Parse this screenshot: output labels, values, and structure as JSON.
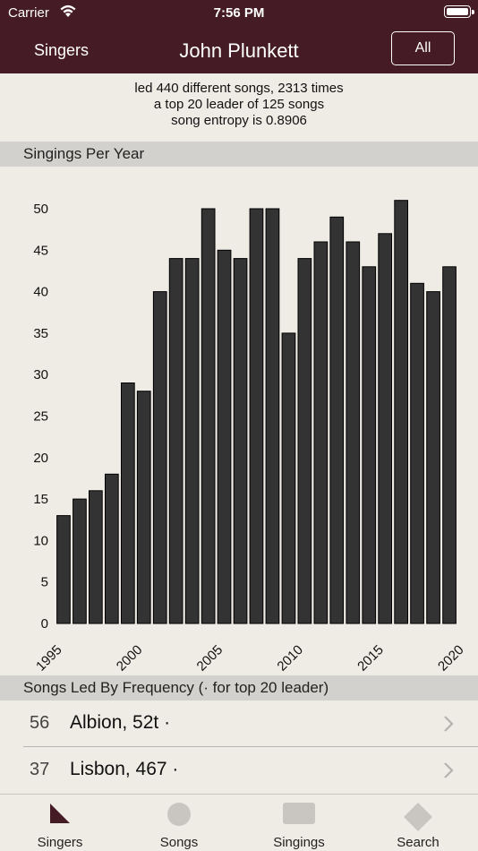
{
  "status_bar": {
    "carrier": "Carrier",
    "time": "7:56 PM"
  },
  "nav": {
    "back_label": "Singers",
    "title": "John Plunkett",
    "filter_label": "All"
  },
  "summary": {
    "line1": "led 440 different songs, 2313 times",
    "line2": "a top 20 leader of 125 songs",
    "line3": "song entropy is 0.8906"
  },
  "sections": {
    "per_year": "Singings Per Year",
    "by_frequency": "Songs Led By Frequency (· for top 20 leader)"
  },
  "chart_data": {
    "type": "bar",
    "title": "",
    "xlabel": "",
    "ylabel": "",
    "x": [
      1996,
      1997,
      1998,
      1999,
      2000,
      2001,
      2002,
      2003,
      2004,
      2005,
      2006,
      2007,
      2008,
      2009,
      2010,
      2011,
      2012,
      2013,
      2014,
      2015,
      2016,
      2017,
      2018,
      2019,
      2020
    ],
    "values": [
      13,
      15,
      16,
      18,
      29,
      28,
      40,
      44,
      44,
      50,
      45,
      44,
      50,
      50,
      35,
      44,
      46,
      49,
      46,
      43,
      47,
      51,
      41,
      40,
      43
    ],
    "xlim": [
      1995,
      2020
    ],
    "ylim": [
      0,
      50
    ],
    "x_ticks": [
      "1995",
      "2000",
      "2005",
      "2010",
      "2015",
      "2020"
    ],
    "y_ticks": [
      "0",
      "5",
      "10",
      "15",
      "20",
      "25",
      "30",
      "35",
      "40",
      "45",
      "50"
    ],
    "bar_color": "#333333",
    "grid": false
  },
  "songs": [
    {
      "count": "56",
      "name": "Albion, 52t ·"
    },
    {
      "count": "37",
      "name": "Lisbon, 467 ·"
    }
  ],
  "tabs": [
    {
      "label": "Singers",
      "icon": "triangle-icon"
    },
    {
      "label": "Songs",
      "icon": "circle-icon"
    },
    {
      "label": "Singings",
      "icon": "rectangle-icon"
    },
    {
      "label": "Search",
      "icon": "diamond-icon"
    }
  ],
  "colors": {
    "nav_bg": "#451c25",
    "background": "#efebe5",
    "section_bg": "#d3d1cd",
    "selected_tab": "#451c25",
    "unselected_tab": "#c9c6c1"
  }
}
